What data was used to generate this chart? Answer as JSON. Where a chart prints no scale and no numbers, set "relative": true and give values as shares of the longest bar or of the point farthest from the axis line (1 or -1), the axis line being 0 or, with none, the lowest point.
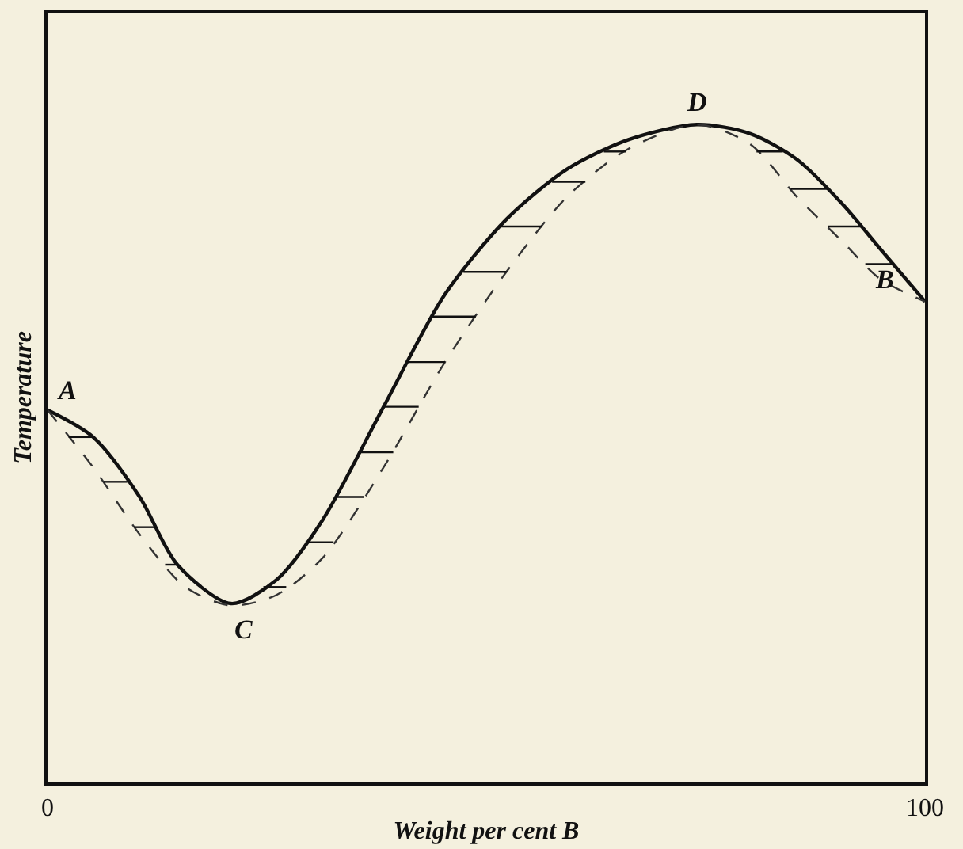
{
  "chart_data": {
    "type": "line",
    "relative": true,
    "xlabel": "Weight per cent B",
    "ylabel": "Temperature",
    "xlim": [
      0,
      100
    ],
    "xticks": [
      0,
      100
    ],
    "grid": false,
    "marker": "none",
    "series": [
      {
        "color": "#111111",
        "line_style": "solid",
        "x": [
          0,
          5.2,
          10.5,
          14.8,
          20.9,
          26.1,
          31.4,
          38.3,
          45.3,
          52.3,
          59.2,
          66.2,
          74.0,
          80.1,
          85.4,
          90.6,
          94.9,
          100
        ],
        "values": [
          0.566,
          0.525,
          0.434,
          0.331,
          0.272,
          0.308,
          0.4,
          0.571,
          0.742,
          0.856,
          0.932,
          0.977,
          1.0,
          0.986,
          0.947,
          0.879,
          0.811,
          0.731
        ]
      },
      {
        "color": "#333333",
        "line_style": "dashed",
        "x": [
          0,
          5.2,
          10.5,
          15.7,
          20.9,
          26.1,
          31.4,
          38.3,
          45.3,
          52.3,
          59.2,
          66.2,
          74.0,
          80.1,
          85.4,
          90.6,
          94.9,
          100
        ],
        "values": [
          0.566,
          0.479,
          0.377,
          0.297,
          0.269,
          0.285,
          0.342,
          0.479,
          0.639,
          0.776,
          0.89,
          0.963,
          1.0,
          0.97,
          0.89,
          0.822,
          0.765,
          0.731
        ]
      },
      {
        "color": "#111111",
        "line_style": "solid",
        "x": [
          2.4,
          5.2,
          null,
          6.4,
          9.1,
          null,
          9.9,
          12.4,
          null,
          13.4,
          14.8,
          null,
          24.6,
          27.2,
          null,
          29.4,
          32.6,
          null,
          32.8,
          36.1,
          null,
          35.5,
          39.4,
          null,
          38.3,
          42.3,
          null,
          41.1,
          45.3,
          null,
          43.9,
          48.8,
          null,
          47.4,
          52.3,
          null,
          51.6,
          56.4,
          null,
          57.5,
          61.3,
          null,
          63.4,
          65.9,
          null,
          80.8,
          83.8,
          null,
          84.7,
          88.9,
          null,
          88.9,
          92.7,
          null,
          93.2,
          96.2
        ],
        "values": [
          0.525,
          0.525,
          null,
          0.457,
          0.457,
          null,
          0.388,
          0.388,
          null,
          0.331,
          0.331,
          null,
          0.297,
          0.297,
          null,
          0.365,
          0.365,
          null,
          0.434,
          0.434,
          null,
          0.502,
          0.502,
          null,
          0.571,
          0.571,
          null,
          0.639,
          0.639,
          null,
          0.708,
          0.708,
          null,
          0.776,
          0.776,
          null,
          0.845,
          0.845,
          null,
          0.913,
          0.913,
          null,
          0.959,
          0.959,
          null,
          0.959,
          0.959,
          null,
          0.902,
          0.902,
          null,
          0.845,
          0.845,
          null,
          0.788,
          0.788
        ]
      }
    ],
    "annotations": [
      {
        "text": "A",
        "x": 0,
        "y": 0.566
      },
      {
        "text": "C",
        "x": 20.9,
        "y": 0.272
      },
      {
        "text": "D",
        "x": 74.0,
        "y": 1.0
      },
      {
        "text": "B",
        "x": 100,
        "y": 0.731
      }
    ]
  }
}
